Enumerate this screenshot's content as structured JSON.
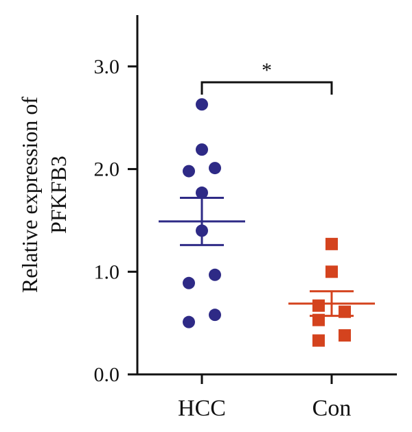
{
  "chart_data": {
    "type": "scatter",
    "ylabel_lines": [
      "Relative expression of",
      "PFKFB3"
    ],
    "xlabel": "",
    "title": "",
    "ylim": [
      0,
      3.5
    ],
    "yticks": [
      0,
      1,
      2,
      3
    ],
    "ytick_labels": [
      "0.0",
      "1.0",
      "2.0",
      "3.0"
    ],
    "categories": [
      "HCC",
      "Con"
    ],
    "grid": false,
    "series": [
      {
        "category": "HCC",
        "marker": "circle",
        "color": "#2e2a86",
        "points": [
          2.63,
          2.19,
          1.98,
          2.01,
          1.77,
          1.4,
          0.89,
          0.97,
          0.51,
          0.58
        ],
        "jitter": [
          0,
          0,
          -0.5,
          0.5,
          0,
          0,
          -0.5,
          0.5,
          -0.5,
          0.5
        ],
        "mean": 1.49,
        "sem": 0.23
      },
      {
        "category": "Con",
        "marker": "square",
        "color": "#d4431e",
        "points": [
          1.27,
          1.0,
          0.67,
          0.53,
          0.61,
          0.33,
          0.38
        ],
        "jitter": [
          0,
          0,
          -0.5,
          -0.5,
          0.5,
          -0.5,
          0.5
        ],
        "mean": 0.69,
        "sem": 0.12
      }
    ],
    "significance": {
      "label": "*",
      "between": [
        "HCC",
        "Con"
      ]
    }
  }
}
